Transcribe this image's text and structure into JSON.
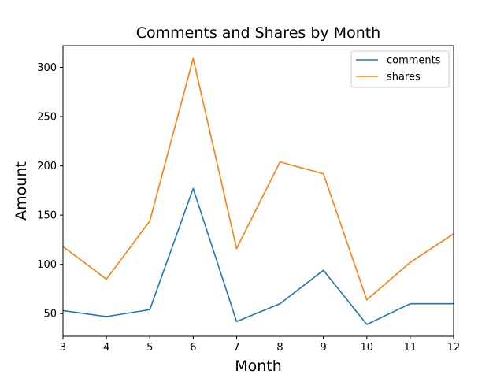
{
  "chart_data": {
    "type": "line",
    "title": "Comments and Shares by Month",
    "xlabel": "Month",
    "ylabel": "Amount",
    "x": [
      3,
      4,
      5,
      6,
      7,
      8,
      9,
      10,
      11,
      12
    ],
    "xlim": [
      3,
      12
    ],
    "ylim": [
      27,
      322
    ],
    "yticks": [
      50,
      100,
      150,
      200,
      250,
      300
    ],
    "xticks": [
      3,
      4,
      5,
      6,
      7,
      8,
      9,
      10,
      11,
      12
    ],
    "grid": false,
    "legend_position": "top-right",
    "series": [
      {
        "name": "comments",
        "color": "#1f77b4",
        "values": [
          53,
          47,
          54,
          177,
          42,
          60,
          94,
          39,
          60,
          60
        ]
      },
      {
        "name": "shares",
        "color": "#ff7f0e",
        "values": [
          118,
          85,
          144,
          309,
          116,
          204,
          192,
          64,
          102,
          131
        ]
      }
    ]
  }
}
